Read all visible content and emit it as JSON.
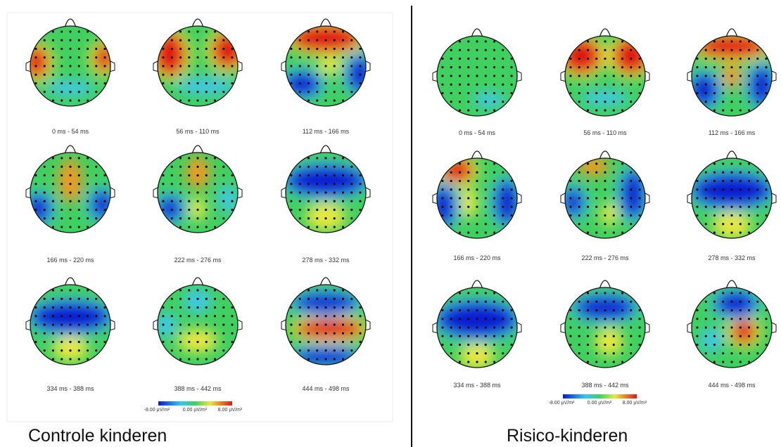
{
  "panels": [
    {
      "caption": "Controle kinderen",
      "maps": [
        "0 ms - 54 ms",
        "56 ms - 110 ms",
        "112 ms - 166 ms",
        "166 ms - 220 ms",
        "222 ms - 276 ms",
        "278 ms - 332 ms",
        "334 ms - 388 ms",
        "388 ms - 442 ms",
        "444 ms - 498 ms"
      ],
      "colorbar": [
        "-8.00 µV/m²",
        "0.00 µV/m²",
        "8.00 µV/m²"
      ]
    },
    {
      "caption": "Risico-kinderen",
      "maps": [
        "0 ms - 54 ms",
        "56 ms - 110 ms",
        "112 ms - 166 ms",
        "166 ms - 220 ms",
        "222 ms - 276 ms",
        "278 ms - 332 ms",
        "334 ms - 388 ms",
        "388 ms - 442 ms",
        "444 ms - 498 ms"
      ],
      "colorbar": [
        "-8.00 µV/m²",
        "0.00 µV/m²",
        "8.00 µV/m²"
      ]
    }
  ]
}
